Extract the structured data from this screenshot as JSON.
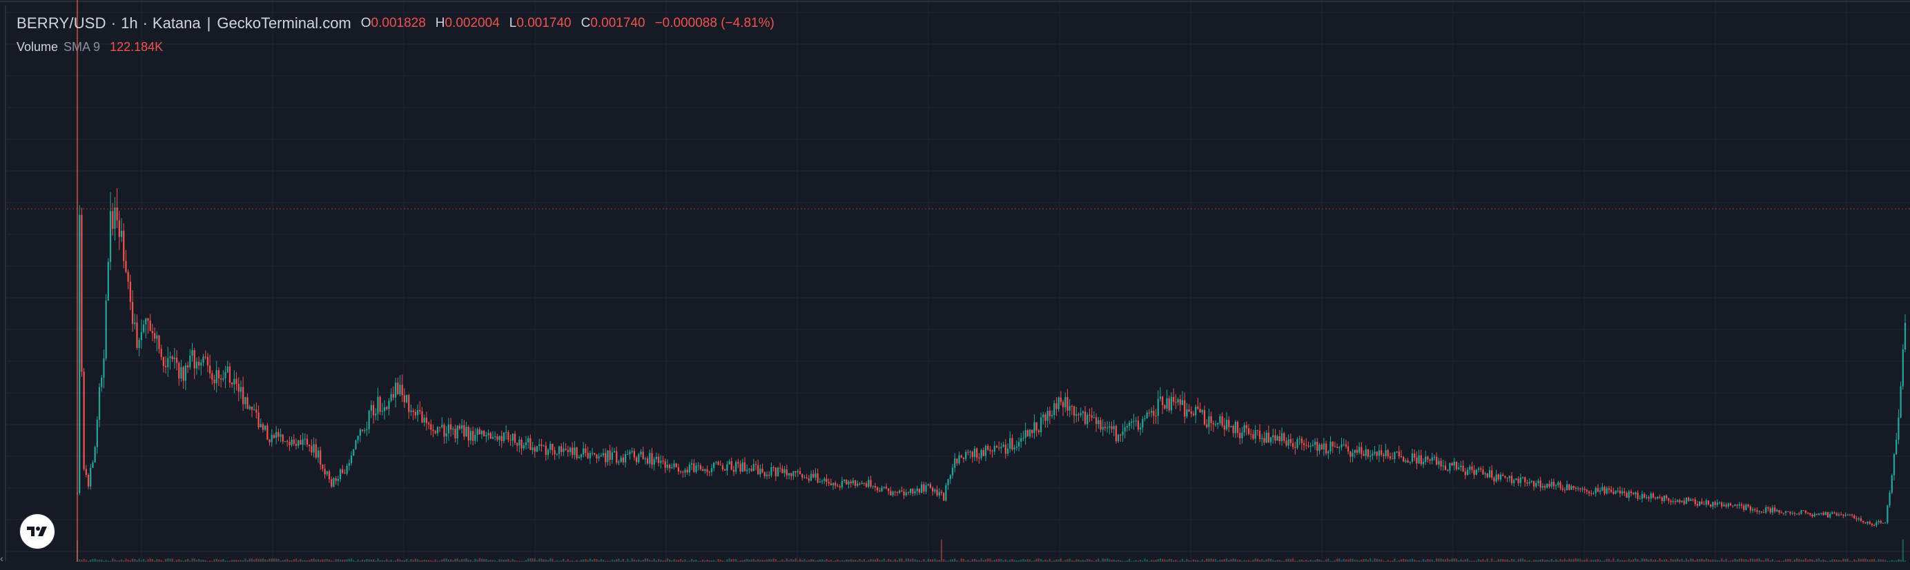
{
  "legend": {
    "symbol": "BERRY/USD",
    "sep1": "·",
    "interval": "1h",
    "sep2": "·",
    "exchange": "Katana",
    "pipe": "|",
    "source": "GeckoTerminal.com",
    "open_key": "O",
    "open": "0.001828",
    "high_key": "H",
    "high": "0.002004",
    "low_key": "L",
    "low": "0.001740",
    "close_key": "C",
    "close": "0.001740",
    "change": "−0.000088 (−4.81%)"
  },
  "volume_legend": {
    "name": "Volume",
    "sma": "SMA 9",
    "value": "122.184K"
  },
  "icons": {
    "logo": "tradingview-logo-icon",
    "scroll_left": "chevron-left-icon"
  },
  "colors": {
    "background": "#161a24",
    "grid": "#232734",
    "up": "#26a69a",
    "down": "#ef5350",
    "price_line": "#ef5350",
    "text": "#d1d4dc"
  },
  "chart_data": {
    "type": "candlestick",
    "interval": "1h",
    "grid": true,
    "price_line": 0.00174,
    "ylim": [
      0,
      0.0066
    ],
    "trend": [
      [
        0,
        0.00085
      ],
      [
        1,
        0.0039
      ],
      [
        2,
        0.0022
      ],
      [
        3,
        0.0011
      ],
      [
        5,
        0.0009
      ],
      [
        8,
        0.0014
      ],
      [
        12,
        0.0025
      ],
      [
        15,
        0.004
      ],
      [
        18,
        0.0041
      ],
      [
        22,
        0.0033
      ],
      [
        27,
        0.0026
      ],
      [
        32,
        0.00275
      ],
      [
        37,
        0.0025
      ],
      [
        42,
        0.0023
      ],
      [
        48,
        0.0022
      ],
      [
        53,
        0.0024
      ],
      [
        58,
        0.0023
      ],
      [
        62,
        0.0021
      ],
      [
        67,
        0.00225
      ],
      [
        72,
        0.0021
      ],
      [
        78,
        0.0018
      ],
      [
        86,
        0.0015
      ],
      [
        95,
        0.0014
      ],
      [
        103,
        0.00145
      ],
      [
        110,
        0.0012
      ],
      [
        115,
        0.0009
      ],
      [
        121,
        0.0011
      ],
      [
        128,
        0.0015
      ],
      [
        134,
        0.0018
      ],
      [
        140,
        0.0019
      ],
      [
        144,
        0.00205
      ],
      [
        148,
        0.00195
      ],
      [
        154,
        0.0017
      ],
      [
        164,
        0.00155
      ],
      [
        178,
        0.0015
      ],
      [
        195,
        0.00145
      ],
      [
        215,
        0.0013
      ],
      [
        235,
        0.00125
      ],
      [
        258,
        0.00122
      ],
      [
        275,
        0.0011
      ],
      [
        295,
        0.00113
      ],
      [
        315,
        0.00105
      ],
      [
        330,
        0.00102
      ],
      [
        342,
        0.0009
      ],
      [
        354,
        0.00095
      ],
      [
        368,
        0.0008
      ],
      [
        385,
        0.00088
      ],
      [
        392,
        0.00075
      ],
      [
        396,
        0.00115
      ],
      [
        404,
        0.00125
      ],
      [
        420,
        0.00135
      ],
      [
        435,
        0.0016
      ],
      [
        446,
        0.0019
      ],
      [
        456,
        0.00165
      ],
      [
        470,
        0.0015
      ],
      [
        482,
        0.0016
      ],
      [
        492,
        0.0019
      ],
      [
        503,
        0.00175
      ],
      [
        514,
        0.00165
      ],
      [
        530,
        0.0015
      ],
      [
        552,
        0.0014
      ],
      [
        575,
        0.0013
      ],
      [
        600,
        0.00125
      ],
      [
        625,
        0.0011
      ],
      [
        650,
        0.00095
      ],
      [
        675,
        0.00088
      ],
      [
        700,
        0.0008
      ],
      [
        725,
        0.00072
      ],
      [
        750,
        0.00065
      ],
      [
        775,
        0.00058
      ],
      [
        800,
        0.00054
      ],
      [
        812,
        0.00045
      ],
      [
        818,
        0.00047
      ],
      [
        823,
        0.0014
      ],
      [
        827,
        0.0028
      ]
    ],
    "total_candles": 828
  }
}
